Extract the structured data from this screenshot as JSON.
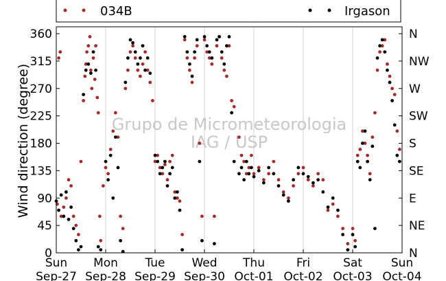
{
  "chart_data": {
    "type": "scatter",
    "ylabel": "Wind direction (degree)",
    "ylim": [
      0,
      360
    ],
    "yticks": [
      0,
      45,
      90,
      135,
      180,
      225,
      270,
      315,
      360
    ],
    "compass_ticks": [
      {
        "value": 0,
        "label": "N"
      },
      {
        "value": 45,
        "label": "NE"
      },
      {
        "value": 90,
        "label": "E"
      },
      {
        "value": 135,
        "label": "SE"
      },
      {
        "value": 180,
        "label": "S"
      },
      {
        "value": 225,
        "label": "SW"
      },
      {
        "value": 270,
        "label": "W"
      },
      {
        "value": 315,
        "label": "NW"
      },
      {
        "value": 360,
        "label": "N"
      }
    ],
    "xlim": [
      0,
      7
    ],
    "xticks": [
      {
        "value": 0,
        "day": "Sun",
        "date": "Sep-27"
      },
      {
        "value": 1,
        "day": "Mon",
        "date": "Sep-28"
      },
      {
        "value": 2,
        "day": "Tue",
        "date": "Sep-29"
      },
      {
        "value": 3,
        "day": "Wed",
        "date": "Sep-30"
      },
      {
        "value": 4,
        "day": "Thu",
        "date": "Oct-01"
      },
      {
        "value": 5,
        "day": "Fri",
        "date": "Oct-02"
      },
      {
        "value": 6,
        "day": "Sat",
        "date": "Oct-03"
      },
      {
        "value": 7,
        "day": "Sun",
        "date": "Oct-04"
      }
    ],
    "grid": "x",
    "watermark": [
      "Grupo de Micrometeorologia",
      "IAG / USP"
    ],
    "legend": {
      "placement": "top",
      "entries": [
        "034B",
        "Irgason"
      ]
    },
    "series": [
      {
        "name": "034B",
        "color": "#a52a2a",
        "points": [
          [
            0.02,
            80
          ],
          [
            0.05,
            320
          ],
          [
            0.08,
            330
          ],
          [
            0.1,
            60
          ],
          [
            0.15,
            75
          ],
          [
            0.2,
            90
          ],
          [
            0.25,
            120
          ],
          [
            0.3,
            110
          ],
          [
            0.35,
            60
          ],
          [
            0.4,
            45
          ],
          [
            0.45,
            30
          ],
          [
            0.5,
            150
          ],
          [
            0.55,
            250
          ],
          [
            0.58,
            290
          ],
          [
            0.6,
            310
          ],
          [
            0.62,
            330
          ],
          [
            0.65,
            340
          ],
          [
            0.68,
            355
          ],
          [
            0.7,
            300
          ],
          [
            0.72,
            270
          ],
          [
            0.75,
            320
          ],
          [
            0.78,
            285
          ],
          [
            0.8,
            340
          ],
          [
            0.83,
            255
          ],
          [
            0.85,
            230
          ],
          [
            0.88,
            60
          ],
          [
            0.9,
            20
          ],
          [
            0.95,
            110
          ],
          [
            1.0,
            140
          ],
          [
            1.05,
            130
          ],
          [
            1.1,
            170
          ],
          [
            1.15,
            200
          ],
          [
            1.2,
            230
          ],
          [
            1.25,
            190
          ],
          [
            1.3,
            60
          ],
          [
            1.35,
            40
          ],
          [
            1.4,
            270
          ],
          [
            1.45,
            300
          ],
          [
            1.5,
            330
          ],
          [
            1.55,
            340
          ],
          [
            1.6,
            320
          ],
          [
            1.65,
            300
          ],
          [
            1.7,
            290
          ],
          [
            1.75,
            310
          ],
          [
            1.8,
            330
          ],
          [
            1.85,
            300
          ],
          [
            1.9,
            280
          ],
          [
            1.95,
            250
          ],
          [
            2.0,
            150
          ],
          [
            2.05,
            160
          ],
          [
            2.1,
            140
          ],
          [
            2.15,
            130
          ],
          [
            2.2,
            145
          ],
          [
            2.25,
            120
          ],
          [
            2.3,
            150
          ],
          [
            2.35,
            160
          ],
          [
            2.4,
            100
          ],
          [
            2.45,
            90
          ],
          [
            2.5,
            85
          ],
          [
            2.55,
            30
          ],
          [
            2.6,
            350
          ],
          [
            2.65,
            320
          ],
          [
            2.7,
            300
          ],
          [
            2.75,
            280
          ],
          [
            2.8,
            320
          ],
          [
            2.85,
            340
          ],
          [
            2.9,
            180
          ],
          [
            2.95,
            60
          ],
          [
            3.0,
            350
          ],
          [
            3.05,
            330
          ],
          [
            3.1,
            320
          ],
          [
            3.15,
            310
          ],
          [
            3.2,
            60
          ],
          [
            3.25,
            340
          ],
          [
            3.3,
            355
          ],
          [
            3.35,
            320
          ],
          [
            3.4,
            300
          ],
          [
            3.45,
            290
          ],
          [
            3.5,
            340
          ],
          [
            3.55,
            250
          ],
          [
            3.6,
            240
          ],
          [
            3.7,
            190
          ],
          [
            3.75,
            160
          ],
          [
            3.8,
            150
          ],
          [
            3.85,
            130
          ],
          [
            3.9,
            140
          ],
          [
            3.95,
            160
          ],
          [
            4.0,
            130
          ],
          [
            4.1,
            140
          ],
          [
            4.2,
            120
          ],
          [
            4.3,
            130
          ],
          [
            4.4,
            150
          ],
          [
            4.5,
            120
          ],
          [
            4.6,
            100
          ],
          [
            4.7,
            90
          ],
          [
            4.8,
            110
          ],
          [
            4.9,
            130
          ],
          [
            5.0,
            140
          ],
          [
            5.1,
            120
          ],
          [
            5.2,
            110
          ],
          [
            5.3,
            130
          ],
          [
            5.4,
            120
          ],
          [
            5.5,
            70
          ],
          [
            5.6,
            80
          ],
          [
            5.7,
            60
          ],
          [
            5.8,
            40
          ],
          [
            5.9,
            15
          ],
          [
            6.0,
            40
          ],
          [
            6.05,
            20
          ],
          [
            6.1,
            160
          ],
          [
            6.15,
            170
          ],
          [
            6.2,
            200
          ],
          [
            6.25,
            180
          ],
          [
            6.3,
            160
          ],
          [
            6.35,
            130
          ],
          [
            6.4,
            190
          ],
          [
            6.45,
            230
          ],
          [
            6.5,
            300
          ],
          [
            6.55,
            330
          ],
          [
            6.6,
            340
          ],
          [
            6.65,
            350
          ],
          [
            6.7,
            310
          ],
          [
            6.75,
            290
          ],
          [
            6.8,
            270
          ],
          [
            6.85,
            260
          ],
          [
            6.9,
            200
          ],
          [
            6.95,
            170
          ]
        ]
      },
      {
        "name": "Irgason",
        "color": "#000000",
        "points": [
          [
            0.0,
            85
          ],
          [
            0.05,
            70
          ],
          [
            0.1,
            95
          ],
          [
            0.15,
            60
          ],
          [
            0.2,
            100
          ],
          [
            0.25,
            55
          ],
          [
            0.3,
            75
          ],
          [
            0.35,
            40
          ],
          [
            0.4,
            20
          ],
          [
            0.45,
            5
          ],
          [
            0.5,
            10
          ],
          [
            0.55,
            260
          ],
          [
            0.6,
            300
          ],
          [
            0.65,
            310
          ],
          [
            0.7,
            295
          ],
          [
            0.75,
            330
          ],
          [
            0.8,
            300
          ],
          [
            0.85,
            10
          ],
          [
            0.9,
            5
          ],
          [
            1.0,
            150
          ],
          [
            1.05,
            120
          ],
          [
            1.1,
            160
          ],
          [
            1.15,
            90
          ],
          [
            1.2,
            190
          ],
          [
            1.25,
            140
          ],
          [
            1.3,
            20
          ],
          [
            1.35,
            2
          ],
          [
            1.4,
            280
          ],
          [
            1.45,
            320
          ],
          [
            1.5,
            350
          ],
          [
            1.55,
            345
          ],
          [
            1.6,
            330
          ],
          [
            1.65,
            310
          ],
          [
            1.7,
            320
          ],
          [
            1.75,
            340
          ],
          [
            1.8,
            300
          ],
          [
            1.85,
            320
          ],
          [
            1.9,
            295
          ],
          [
            2.0,
            160
          ],
          [
            2.05,
            150
          ],
          [
            2.1,
            130
          ],
          [
            2.15,
            140
          ],
          [
            2.2,
            150
          ],
          [
            2.25,
            110
          ],
          [
            2.3,
            130
          ],
          [
            2.35,
            140
          ],
          [
            2.4,
            90
          ],
          [
            2.45,
            100
          ],
          [
            2.5,
            70
          ],
          [
            2.55,
            5
          ],
          [
            2.6,
            355
          ],
          [
            2.65,
            330
          ],
          [
            2.7,
            310
          ],
          [
            2.75,
            290
          ],
          [
            2.8,
            330
          ],
          [
            2.85,
            350
          ],
          [
            2.9,
            150
          ],
          [
            2.95,
            20
          ],
          [
            3.0,
            355
          ],
          [
            3.05,
            340
          ],
          [
            3.1,
            330
          ],
          [
            3.15,
            320
          ],
          [
            3.2,
            15
          ],
          [
            3.25,
            350
          ],
          [
            3.3,
            355
          ],
          [
            3.35,
            330
          ],
          [
            3.4,
            310
          ],
          [
            3.45,
            340
          ],
          [
            3.5,
            355
          ],
          [
            3.55,
            230
          ],
          [
            3.6,
            150
          ],
          [
            3.7,
            130
          ],
          [
            3.75,
            140
          ],
          [
            3.8,
            120
          ],
          [
            3.85,
            150
          ],
          [
            3.9,
            130
          ],
          [
            3.95,
            140
          ],
          [
            4.0,
            125
          ],
          [
            4.1,
            135
          ],
          [
            4.2,
            115
          ],
          [
            4.3,
            140
          ],
          [
            4.4,
            130
          ],
          [
            4.5,
            110
          ],
          [
            4.6,
            95
          ],
          [
            4.7,
            85
          ],
          [
            4.8,
            120
          ],
          [
            4.9,
            140
          ],
          [
            5.0,
            130
          ],
          [
            5.1,
            125
          ],
          [
            5.2,
            115
          ],
          [
            5.3,
            120
          ],
          [
            5.4,
            100
          ],
          [
            5.5,
            75
          ],
          [
            5.6,
            90
          ],
          [
            5.7,
            70
          ],
          [
            5.8,
            30
          ],
          [
            5.9,
            5
          ],
          [
            6.0,
            30
          ],
          [
            6.05,
            10
          ],
          [
            6.1,
            150
          ],
          [
            6.15,
            140
          ],
          [
            6.2,
            180
          ],
          [
            6.25,
            200
          ],
          [
            6.3,
            150
          ],
          [
            6.35,
            120
          ],
          [
            6.4,
            175
          ],
          [
            6.45,
            40
          ],
          [
            6.5,
            320
          ],
          [
            6.55,
            340
          ],
          [
            6.6,
            350
          ],
          [
            6.65,
            330
          ],
          [
            6.7,
            300
          ],
          [
            6.75,
            280
          ],
          [
            6.8,
            250
          ],
          [
            6.85,
            210
          ],
          [
            6.9,
            160
          ],
          [
            6.95,
            150
          ]
        ]
      }
    ]
  }
}
